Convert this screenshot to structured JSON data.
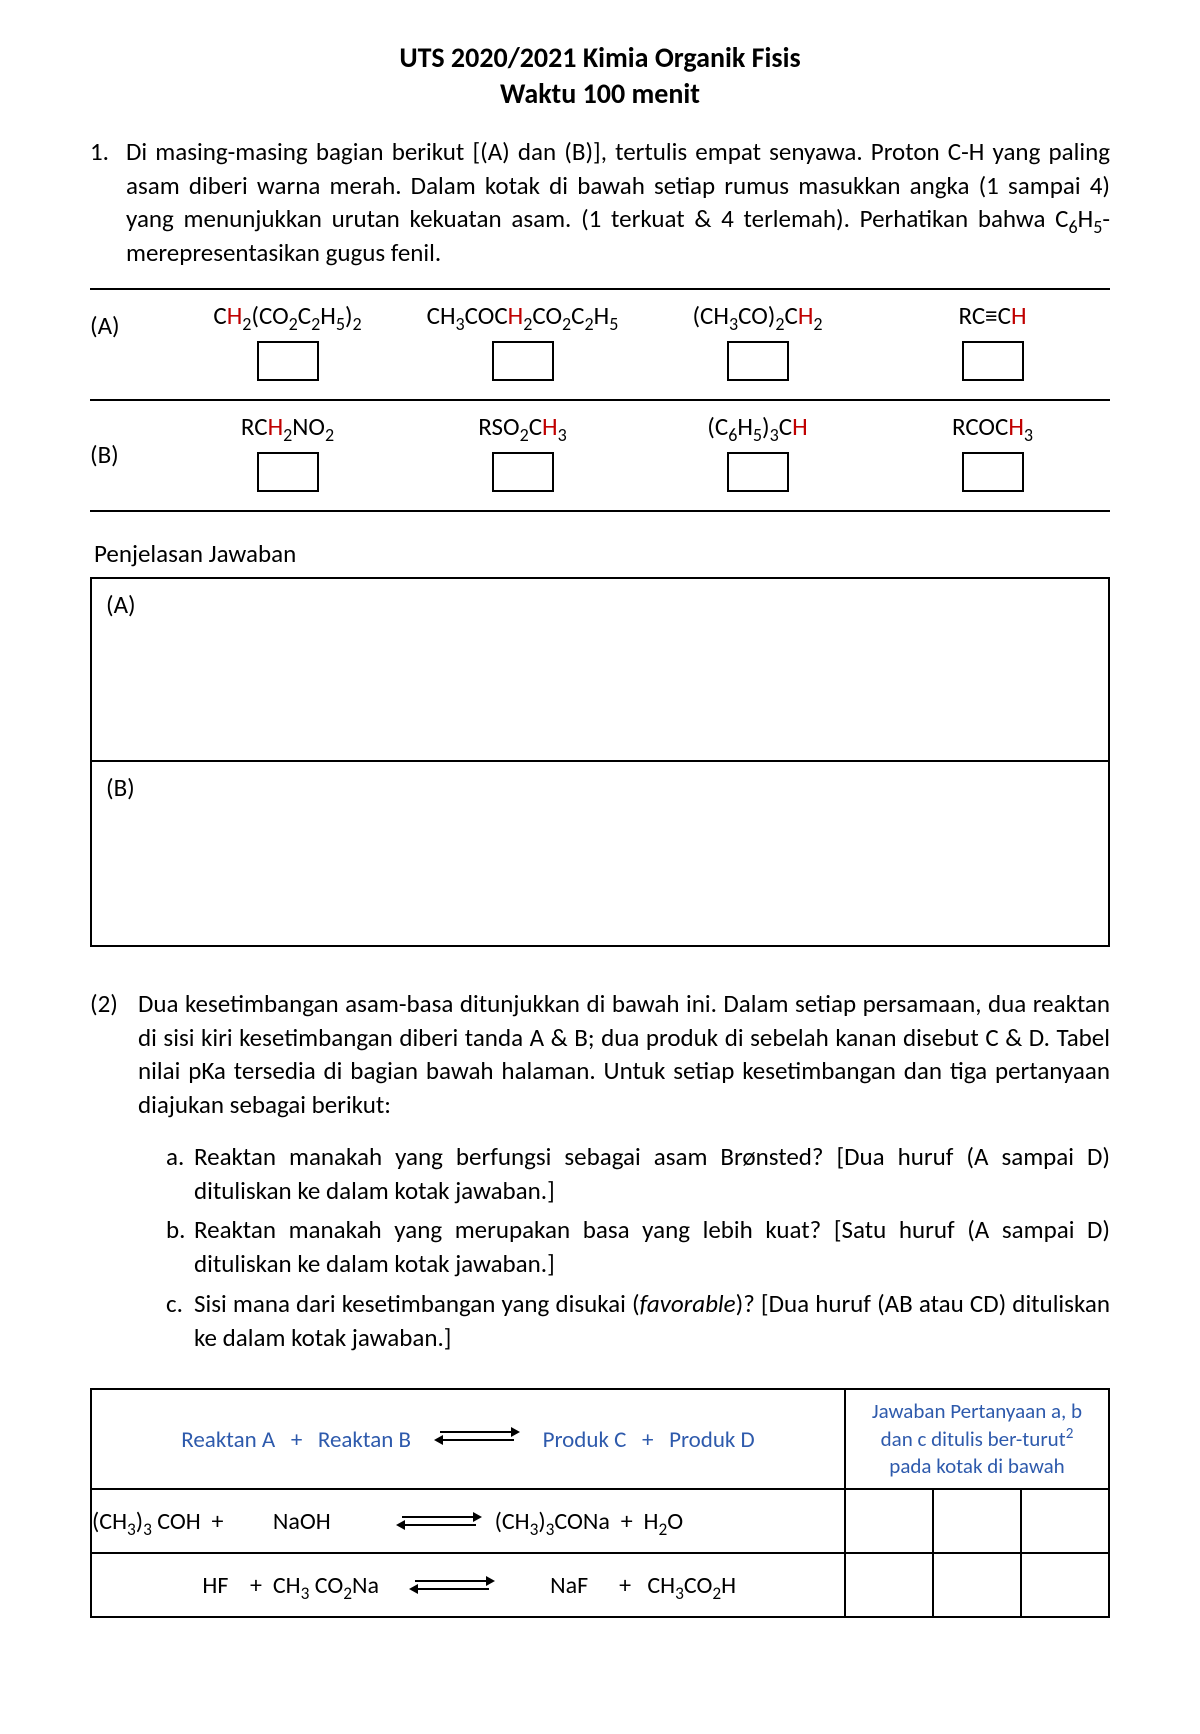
{
  "title": {
    "line1": "UTS 2020/2021  Kimia Organik Fisis",
    "line2": "Waktu 100 menit"
  },
  "q1": {
    "number": "1.",
    "text_pre": "Di masing-masing bagian berikut [(A) dan (B)], tertulis empat senyawa. Proton C-H yang paling asam diberi warna merah. Dalam kotak di bawah setiap rumus masukkan angka (1 sampai 4) yang menunjukkan urutan kekuatan asam. (1 terkuat & 4 terlemah). Perhatikan bahwa C",
    "text_sub1": "6",
    "text_mid1": "H",
    "text_sub2": "5",
    "text_post": "- merepresentasikan  gugus fenil.",
    "rowA": {
      "label": "(A)",
      "cells": [
        {
          "html": "C<span class='red'>H</span><sub>2</sub>(CO<sub>2</sub>C<sub>2</sub>H<sub>5</sub>)<sub>2</sub>"
        },
        {
          "html": "CH<sub>3</sub>COC<span class='red'>H</span><sub>2</sub>CO<sub>2</sub>C<sub>2</sub>H<sub>5</sub>"
        },
        {
          "html": "(CH<sub>3</sub>CO)<sub>2</sub>C<span class='red'>H</span><sub>2</sub>"
        },
        {
          "html": "RC≡C<span class='red'>H</span>"
        }
      ]
    },
    "rowB": {
      "label": "(B)",
      "cells": [
        {
          "html": "RC<span class='red'>H</span><sub>2</sub>NO<sub>2</sub>"
        },
        {
          "html": "RSO<sub>2</sub>C<span class='red'>H</span><sub>3</sub>"
        },
        {
          "html": "(C<sub>6</sub>H<sub>5</sub>)<sub>3</sub>C<span class='red'>H</span>"
        },
        {
          "html": "RCOC<span class='red'>H</span><sub>3</sub>"
        }
      ]
    },
    "penjelasan_label": "Penjelasan Jawaban",
    "explainA": "(A)",
    "explainB": "(B)"
  },
  "q2": {
    "number": "(2)",
    "intro": "Dua kesetimbangan asam-basa ditunjukkan di bawah ini. Dalam setiap persamaan, dua reaktan di sisi kiri kesetimbangan diberi tanda A & B; dua produk di sebelah kanan disebut C & D. Tabel nilai pKa tersedia di bagian bawah halaman. Untuk setiap kesetimbangan dan tiga pertanyaan diajukan sebagai berikut:",
    "items": {
      "a": {
        "letter": "a.",
        "text": "Reaktan manakah yang berfungsi sebagai asam Brønsted? [Dua huruf (A sampai D) dituliskan ke dalam kotak jawaban.]"
      },
      "b": {
        "letter": "b.",
        "text": "Reaktan manakah yang merupakan basa yang lebih kuat? [Satu huruf (A sampai D) dituliskan ke dalam kotak jawaban.]"
      },
      "c": {
        "letter": "c.",
        "pre": "Sisi mana dari kesetimbangan yang disukai (",
        "ital": "favorable",
        "post": ")? [Dua huruf (AB atau CD) dituliskan ke dalam kotak jawaban.]"
      }
    },
    "table": {
      "header_left": {
        "reaktanA": "Reaktan A",
        "plus": "+",
        "reaktanB": "Reaktan B",
        "produkC": "Produk C",
        "produkD": "Produk D"
      },
      "header_right_l1": "Jawaban Pertanyaan a, b",
      "header_right_l2_pre": "dan c ditulis ber-turut",
      "header_right_l2_sup": "2",
      "header_right_l3": "pada kotak di bawah",
      "rows": [
        {
          "left_html": "<span class='eq-seg' style='width:170px;'>(CH<sub>3</sub>)<sub>3</sub> COH&nbsp;&nbsp;+</span><span class='eq-seg' style='width:110px'>&nbsp;&nbsp;NaOH</span>",
          "right_html": "<span class='eq-seg'>(CH<sub>3</sub>)<sub>3</sub>CONa&nbsp;&nbsp;+&nbsp;&nbsp;H<sub>2</sub>O</span>"
        },
        {
          "left_html": "<span class='eq-seg' style='width:170px;text-align:right;display:inline-block;'>HF&nbsp;&nbsp;&nbsp;&nbsp;+</span><span class='eq-seg' style='width:140px'>&nbsp;&nbsp;CH<sub>3</sub> CO<sub>2</sub>Na</span>",
          "right_html": "<span class='eq-seg' style='width:100px;text-align:center;display:inline-block;'>NaF</span><span class='eq-seg'>+&nbsp;&nbsp;&nbsp;CH<sub>3</sub>CO<sub>2</sub>H</span>"
        }
      ]
    }
  }
}
